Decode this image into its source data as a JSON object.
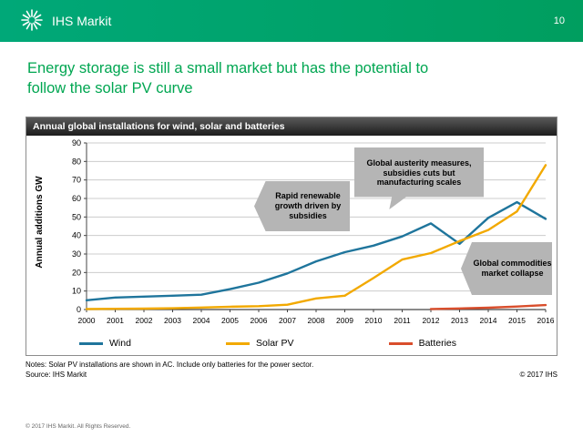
{
  "header": {
    "brand": "IHS Markit",
    "page_number": "10"
  },
  "slide": {
    "title_line1": "Energy storage is still a small market but has the potential to",
    "title_line2": "follow the solar PV curve"
  },
  "chart": {
    "callouts": [
      {
        "text": "Rapid renewable growth driven by subsidies"
      },
      {
        "text": "Global austerity measures, subsidies cuts but manufacturing scales"
      },
      {
        "text": "Global commodities market collapse"
      }
    ]
  },
  "chart_data": {
    "type": "line",
    "title": "Annual global installations for wind, solar  and batteries",
    "ylabel": "Annual additions GW",
    "xlabel": "",
    "ylim": [
      0,
      90
    ],
    "y_ticks": [
      0,
      10,
      20,
      30,
      40,
      50,
      60,
      70,
      80,
      90
    ],
    "grid": true,
    "legend_position": "bottom",
    "categories": [
      "2000",
      "2001",
      "2002",
      "2003",
      "2004",
      "2005",
      "2006",
      "2007",
      "2008",
      "2009",
      "2010",
      "2011",
      "2012",
      "2013",
      "2014",
      "2015",
      "2016"
    ],
    "series": [
      {
        "name": "Wind",
        "color": "#1f759c",
        "values": [
          5,
          6.5,
          7,
          7.5,
          8,
          11,
          14.5,
          19.5,
          26,
          31,
          34.5,
          39.5,
          46.5,
          35.5,
          49.5,
          58,
          49
        ]
      },
      {
        "name": "Solar PV",
        "color": "#f2a900",
        "values": [
          0.3,
          0.4,
          0.5,
          0.7,
          1.1,
          1.5,
          1.8,
          2.6,
          6,
          7.5,
          17,
          27,
          30.5,
          37,
          43,
          53,
          78
        ]
      },
      {
        "name": "Batteries",
        "color": "#d94e2c",
        "values": [
          null,
          null,
          null,
          null,
          null,
          null,
          null,
          null,
          null,
          null,
          null,
          null,
          0.3,
          0.6,
          1,
          1.6,
          2.4
        ]
      }
    ]
  },
  "notes": {
    "line1": "Notes: Solar PV installations are shown in AC. Include only batteries for the power sector.",
    "line2": "Source: IHS Markit",
    "copyright": "© 2017 IHS"
  },
  "footer": {
    "text": "© 2017 IHS Markit. All Rights Reserved."
  }
}
